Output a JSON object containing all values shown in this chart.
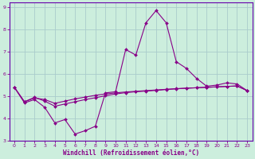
{
  "xlabel": "Windchill (Refroidissement éolien,°C)",
  "background_color": "#cceedd",
  "grid_color": "#aacccc",
  "line_color": "#880088",
  "spine_color": "#6600aa",
  "xlim": [
    -0.5,
    23.5
  ],
  "ylim": [
    3,
    9.2
  ],
  "yticks": [
    3,
    4,
    5,
    6,
    7,
    8,
    9
  ],
  "xticks": [
    0,
    1,
    2,
    3,
    4,
    5,
    6,
    7,
    8,
    9,
    10,
    11,
    12,
    13,
    14,
    15,
    16,
    17,
    18,
    19,
    20,
    21,
    22,
    23
  ],
  "series1_x": [
    0,
    1,
    2,
    3,
    4,
    5,
    6,
    7,
    8,
    9,
    10,
    11,
    12,
    13,
    14,
    15,
    16,
    17,
    18,
    19,
    20,
    21,
    22,
    23
  ],
  "series1_y": [
    5.4,
    4.7,
    4.85,
    4.5,
    3.8,
    3.95,
    3.3,
    3.45,
    3.65,
    5.15,
    5.2,
    7.1,
    6.85,
    8.3,
    8.85,
    8.3,
    6.55,
    6.25,
    5.8,
    5.45,
    5.5,
    5.6,
    5.55,
    5.25
  ],
  "series2_x": [
    0,
    1,
    2,
    3,
    4,
    5,
    6,
    7,
    8,
    9,
    10,
    11,
    12,
    13,
    14,
    15,
    16,
    17,
    18,
    19,
    20,
    21,
    22,
    23
  ],
  "series2_y": [
    5.4,
    4.75,
    4.92,
    4.85,
    4.68,
    4.78,
    4.88,
    4.96,
    5.04,
    5.1,
    5.15,
    5.19,
    5.22,
    5.25,
    5.28,
    5.31,
    5.34,
    5.36,
    5.38,
    5.4,
    5.42,
    5.44,
    5.46,
    5.25
  ],
  "series3_x": [
    0,
    1,
    2,
    3,
    4,
    5,
    6,
    7,
    8,
    9,
    10,
    11,
    12,
    13,
    14,
    15,
    16,
    17,
    18,
    19,
    20,
    21,
    22,
    23
  ],
  "series3_y": [
    5.4,
    4.75,
    4.95,
    4.78,
    4.55,
    4.65,
    4.75,
    4.85,
    4.93,
    5.02,
    5.1,
    5.16,
    5.2,
    5.23,
    5.26,
    5.3,
    5.33,
    5.36,
    5.38,
    5.4,
    5.42,
    5.44,
    5.46,
    5.25
  ]
}
